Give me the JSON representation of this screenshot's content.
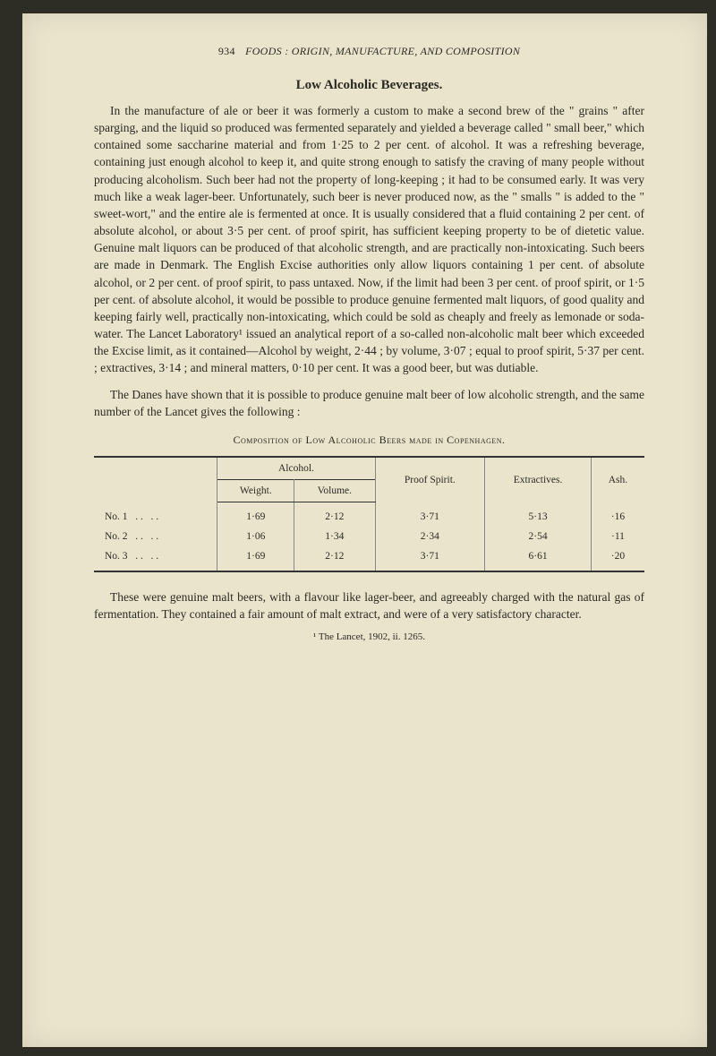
{
  "header": {
    "page_number": "934",
    "running_title": "FOODS : ORIGIN, MANUFACTURE, AND COMPOSITION"
  },
  "section_title": "Low Alcoholic Beverages.",
  "paragraphs": {
    "p1": "In the manufacture of ale or beer it was formerly a custom to make a second brew of the \" grains \" after sparging, and the liquid so produced was fermented separately and yielded a beverage called \" small beer,\" which contained some saccharine material and from 1·25 to 2 per cent. of alcohol. It was a refreshing beverage, containing just enough alcohol to keep it, and quite strong enough to satisfy the craving of many people without producing alcoholism. Such beer had not the property of long-keeping ; it had to be consumed early. It was very much like a weak lager-beer. Unfortunately, such beer is never produced now, as the \" smalls \" is added to the \" sweet-wort,\" and the entire ale is fermented at once. It is usually considered that a fluid containing 2 per cent. of absolute alcohol, or about 3·5 per cent. of proof spirit, has sufficient keeping property to be of dietetic value. Genuine malt liquors can be produced of that alcoholic strength, and are practically non-intoxicating. Such beers are made in Denmark. The English Excise authorities only allow liquors containing 1 per cent. of absolute alcohol, or 2 per cent. of proof spirit, to pass untaxed. Now, if the limit had been 3 per cent. of proof spirit, or 1·5 per cent. of absolute alcohol, it would be possible to produce genuine fermented malt liquors, of good quality and keeping fairly well, practically non-intoxicating, which could be sold as cheaply and freely as lemonade or soda-water. The Lancet Laboratory¹ issued an analytical report of a so-called non-alcoholic malt beer which exceeded the Excise limit, as it contained—Alcohol by weight, 2·44 ; by volume, 3·07 ; equal to proof spirit, 5·37 per cent. ; extractives, 3·14 ; and mineral matters, 0·10 per cent. It was a good beer, but was dutiable.",
    "p2": "The Danes have shown that it is possible to produce genuine malt beer of low alcoholic strength, and the same number of the Lancet gives the following :",
    "p3": "These were genuine malt beers, with a flavour like lager-beer, and agreeably charged with the natural gas of fermentation. They contained a fair amount of malt extract, and were of a very satisfactory character."
  },
  "table": {
    "title": "Composition of Low Alcoholic Beers made in Copenhagen.",
    "headers": {
      "alcohol": "Alcohol.",
      "weight": "Weight.",
      "volume": "Volume.",
      "proof_spirit": "Proof Spirit.",
      "extractives": "Extractives.",
      "ash": "Ash."
    },
    "rows": [
      {
        "label": "No. 1",
        "weight": "1·69",
        "volume": "2·12",
        "proof": "3·71",
        "extractives": "5·13",
        "ash": "·16"
      },
      {
        "label": "No. 2",
        "weight": "1·06",
        "volume": "1·34",
        "proof": "2·34",
        "extractives": "2·54",
        "ash": "·11"
      },
      {
        "label": "No. 3",
        "weight": "1·69",
        "volume": "2·12",
        "proof": "3·71",
        "extractives": "6·61",
        "ash": "·20"
      }
    ]
  },
  "footnote": "¹ The Lancet, 1902, ii. 1265."
}
